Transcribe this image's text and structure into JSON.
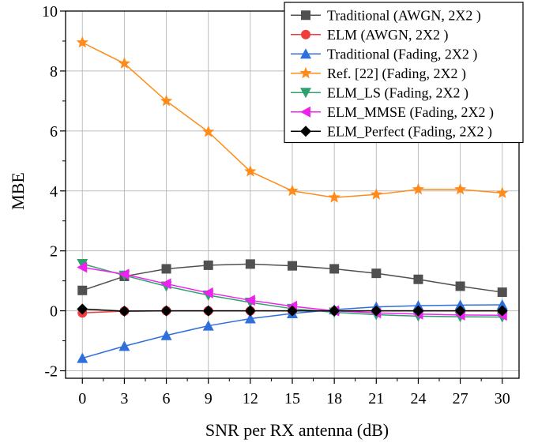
{
  "chart_data": {
    "type": "line",
    "xlabel": "SNR per RX antenna (dB)",
    "ylabel": "MBE",
    "x": [
      0,
      3,
      6,
      9,
      12,
      15,
      18,
      21,
      24,
      27,
      30
    ],
    "x_ticks": [
      "0",
      "3",
      "6",
      "9",
      "12",
      "15",
      "18",
      "21",
      "24",
      "27",
      "30"
    ],
    "xlim": [
      -1.2,
      31.2
    ],
    "ylim": [
      -2.25,
      10
    ],
    "y_ticks": [
      "-2",
      "0",
      "2",
      "4",
      "6",
      "8",
      "10"
    ],
    "grid": true,
    "legend_position": "top-right",
    "series": [
      {
        "name": "Traditional (AWGN, 2X2 )",
        "color": "#505050",
        "marker": "square",
        "values": [
          0.68,
          1.15,
          1.4,
          1.52,
          1.56,
          1.5,
          1.4,
          1.25,
          1.05,
          0.82,
          0.62
        ]
      },
      {
        "name": "ELM (AWGN, 2X2 )",
        "color": "#ee3d3d",
        "marker": "circle",
        "values": [
          -0.07,
          -0.01,
          0.0,
          0.0,
          0.0,
          0.0,
          0.0,
          0.0,
          0.0,
          0.0,
          0.0
        ]
      },
      {
        "name": "Traditional (Fading, 2X2 )",
        "color": "#2f6fdc",
        "marker": "triangle-up",
        "values": [
          -1.58,
          -1.18,
          -0.82,
          -0.5,
          -0.26,
          -0.09,
          0.04,
          0.13,
          0.17,
          0.19,
          0.2
        ]
      },
      {
        "name": "Ref. [22] (Fading, 2X2 )",
        "color": "#ff8c1a",
        "marker": "star",
        "values": [
          8.95,
          8.25,
          7.0,
          5.97,
          4.65,
          4.0,
          3.78,
          3.88,
          4.05,
          4.05,
          3.93
        ]
      },
      {
        "name": "ELM_LS (Fading, 2X2 )",
        "color": "#2fa06e",
        "marker": "triangle-down",
        "values": [
          1.57,
          1.18,
          0.82,
          0.52,
          0.28,
          0.07,
          -0.05,
          -0.13,
          -0.18,
          -0.2,
          -0.21
        ]
      },
      {
        "name": "ELM_MMSE (Fading, 2X2 )",
        "color": "#ee22ee",
        "marker": "triangle-left",
        "values": [
          1.45,
          1.22,
          0.9,
          0.6,
          0.35,
          0.15,
          0.0,
          -0.07,
          -0.11,
          -0.14,
          -0.15
        ]
      },
      {
        "name": "ELM_Perfect (Fading, 2X2 )",
        "color": "#000000",
        "marker": "diamond",
        "values": [
          0.06,
          -0.01,
          0.0,
          0.0,
          0.0,
          0.0,
          0.0,
          0.0,
          0.0,
          0.0,
          0.0
        ]
      }
    ]
  }
}
